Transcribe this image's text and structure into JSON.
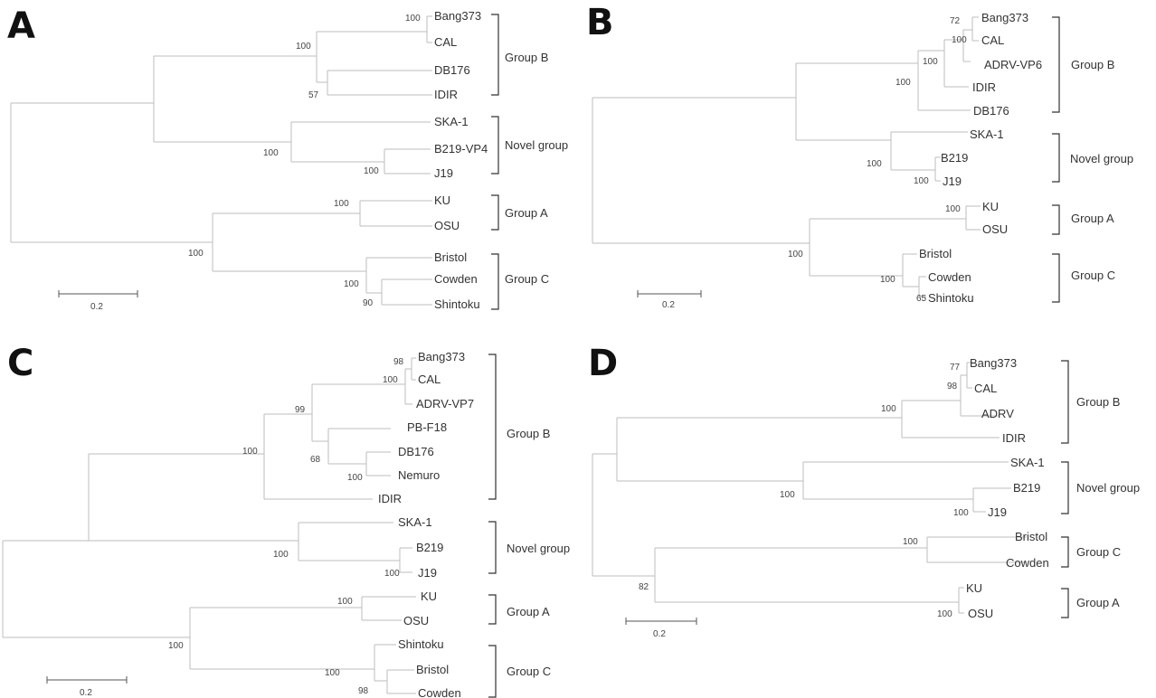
{
  "figure": {
    "panels": [
      {
        "id": "A",
        "leaves": [
          "Bang373",
          "CAL",
          "DB176",
          "IDIR",
          "SKA-1",
          "B219-VP4",
          "J19",
          "KU",
          "OSU",
          "Bristol",
          "Cowden",
          "Shintoku"
        ],
        "bootstrap": [
          "100",
          "100",
          "57",
          "100",
          "100",
          "100",
          "100",
          "100",
          "90"
        ],
        "groups": [
          "Group B",
          "Novel group",
          "Group A",
          "Group C"
        ],
        "scale": "0.2"
      },
      {
        "id": "B",
        "leaves": [
          "Bang373",
          "CAL",
          "ADRV-VP6",
          "IDIR",
          "DB176",
          "SKA-1",
          "B219",
          "J19",
          "KU",
          "OSU",
          "Bristol",
          "Cowden",
          "Shintoku"
        ],
        "bootstrap": [
          "72",
          "100",
          "100",
          "100",
          "100",
          "100",
          "100",
          "100",
          "100",
          "65"
        ],
        "groups": [
          "Group  B",
          "Novel group",
          "Group  A",
          "Group  C"
        ],
        "scale": "0.2"
      },
      {
        "id": "C",
        "leaves": [
          "Bang373",
          "CAL",
          "ADRV-VP7",
          "PB-F18",
          "DB176",
          "Nemuro",
          "IDIR",
          "SKA-1",
          "B219",
          "J19",
          "KU",
          "OSU",
          "Shintoku",
          "Bristol",
          "Cowden"
        ],
        "bootstrap": [
          "98",
          "100",
          "99",
          "68",
          "100",
          "100",
          "100",
          "100",
          "100",
          "100",
          "100",
          "98"
        ],
        "groups": [
          "Group B",
          "Novel group",
          "Group A",
          "Group C"
        ],
        "scale": "0.2"
      },
      {
        "id": "D",
        "leaves": [
          "Bang373",
          "CAL",
          "ADRV",
          "IDIR",
          "SKA-1",
          "B219",
          "J19",
          "Bristol",
          "Cowden",
          "KU",
          "OSU"
        ],
        "bootstrap": [
          "77",
          "98",
          "100",
          "100",
          "100",
          "100",
          "82",
          "100"
        ],
        "groups": [
          "Group B",
          "Novel group",
          "Group C",
          "Group A"
        ],
        "scale": "0.2"
      }
    ]
  }
}
